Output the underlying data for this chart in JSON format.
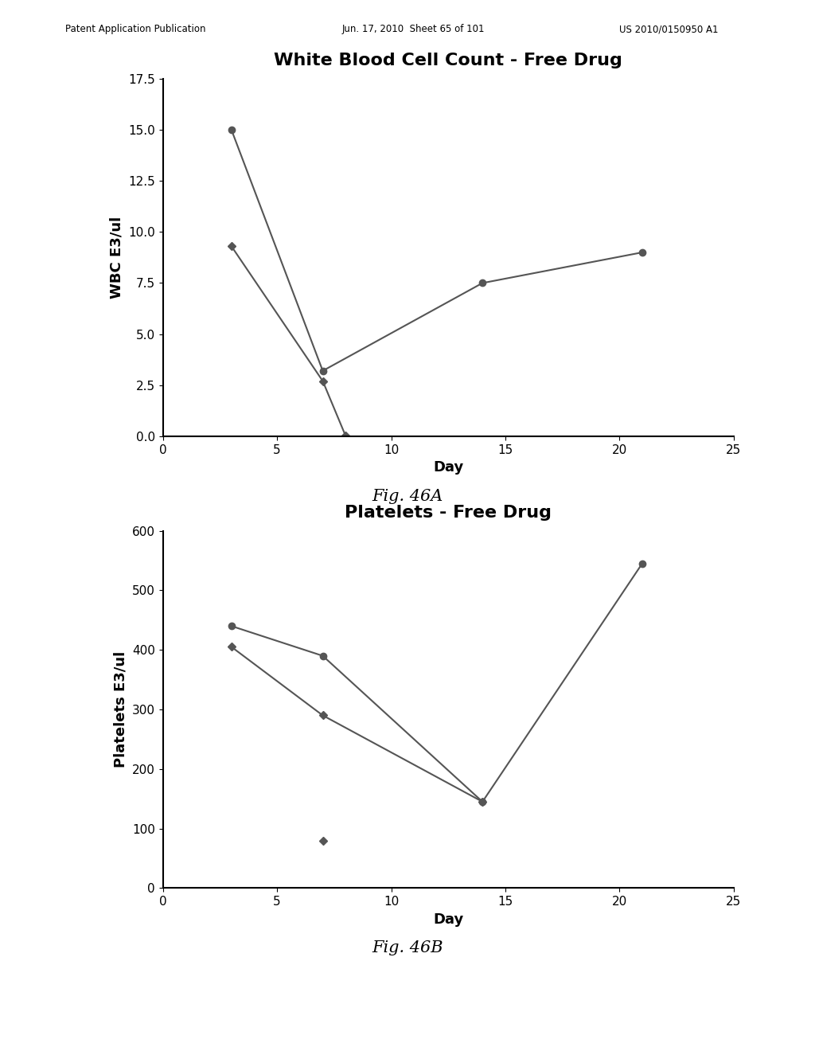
{
  "chart_a": {
    "title": "White Blood Cell Count - Free Drug",
    "ylabel": "WBC E3/ul",
    "xlabel": "Day",
    "xlim": [
      0,
      25
    ],
    "ylim": [
      0,
      17.5
    ],
    "yticks": [
      0.0,
      2.5,
      5.0,
      7.5,
      10.0,
      12.5,
      15.0,
      17.5
    ],
    "xticks": [
      0,
      5,
      10,
      15,
      20,
      25
    ],
    "series": [
      {
        "x": [
          3,
          7,
          14,
          21
        ],
        "y": [
          15.0,
          3.2,
          7.5,
          9.0
        ],
        "color": "#555555",
        "marker": "o",
        "markersize": 6
      },
      {
        "x": [
          3,
          7,
          8
        ],
        "y": [
          9.3,
          2.7,
          0.02
        ],
        "color": "#555555",
        "marker": "D",
        "markersize": 5
      }
    ],
    "fig_label": "Fig. 46A"
  },
  "chart_b": {
    "title": "Platelets - Free Drug",
    "ylabel": "Platelets E3/ul",
    "xlabel": "Day",
    "xlim": [
      0,
      25
    ],
    "ylim": [
      0,
      600
    ],
    "yticks": [
      0,
      100,
      200,
      300,
      400,
      500,
      600
    ],
    "xticks": [
      0,
      5,
      10,
      15,
      20,
      25
    ],
    "series": [
      {
        "x": [
          3,
          7,
          14,
          21
        ],
        "y": [
          440,
          390,
          145,
          545
        ],
        "color": "#555555",
        "marker": "o",
        "markersize": 6
      },
      {
        "x": [
          3,
          7,
          14
        ],
        "y": [
          405,
          290,
          145
        ],
        "color": "#555555",
        "marker": "D",
        "markersize": 5
      },
      {
        "x": [
          7
        ],
        "y": [
          80
        ],
        "color": "#555555",
        "marker": "D",
        "markersize": 5
      }
    ],
    "fig_label": "Fig. 46B"
  },
  "header_left": "Patent Application Publication",
  "header_mid": "Jun. 17, 2010  Sheet 65 of 101",
  "header_right": "US 2010/0150950 A1",
  "background_color": "#ffffff",
  "title_fontsize": 16,
  "axis_label_fontsize": 13,
  "tick_fontsize": 11,
  "fig_label_fontsize": 15
}
